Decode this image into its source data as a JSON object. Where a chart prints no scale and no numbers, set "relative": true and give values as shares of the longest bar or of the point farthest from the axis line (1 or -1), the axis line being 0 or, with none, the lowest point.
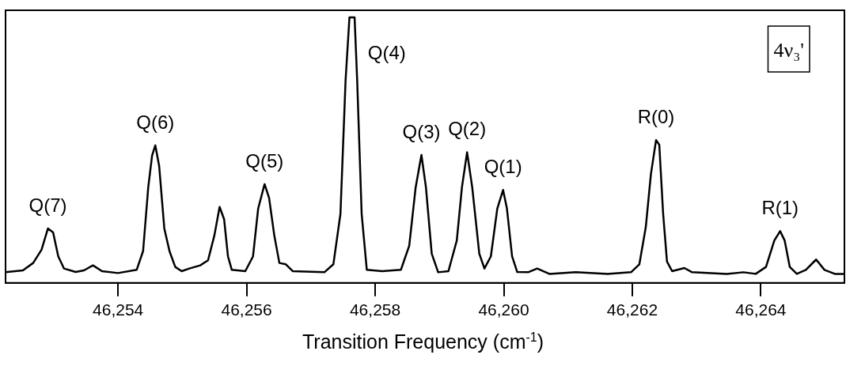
{
  "chart_data": {
    "type": "line",
    "relative": true,
    "xlabel": "Transition Frequency (cm$^{-1}$)",
    "marker": "none",
    "line_style": "solid",
    "xlim": [
      46252.25,
      46265.3
    ],
    "xticks": [
      {
        "value": 46254,
        "label": "46,254"
      },
      {
        "value": 46256,
        "label": "46,256"
      },
      {
        "value": 46258,
        "label": "46,258"
      },
      {
        "value": 46260,
        "label": "46,260"
      },
      {
        "value": 46262,
        "label": "46,262"
      },
      {
        "value": 46264,
        "label": "46,264"
      }
    ],
    "series": [
      {
        "color": "#000000",
        "x": [
          46252.25,
          46252.52,
          46252.68,
          46252.81,
          46252.91,
          46252.99,
          46253.07,
          46253.16,
          46253.34,
          46253.47,
          46253.61,
          46253.75,
          46254.0,
          46254.29,
          46254.39,
          46254.47,
          46254.53,
          46254.58,
          46254.64,
          46254.72,
          46254.8,
          46254.89,
          46254.99,
          46255.11,
          46255.28,
          46255.4,
          46255.5,
          46255.58,
          46255.65,
          46255.71,
          46255.77,
          46255.98,
          46256.1,
          46256.18,
          46256.28,
          46256.35,
          46256.43,
          46256.51,
          46256.61,
          46256.72,
          46257.21,
          46257.35,
          46257.46,
          46257.54,
          46257.6,
          46257.68,
          46257.72,
          46257.79,
          46257.87,
          46258.11,
          46258.4,
          46258.53,
          46258.63,
          46258.72,
          46258.79,
          46258.88,
          46258.98,
          46259.14,
          46259.27,
          46259.35,
          46259.43,
          46259.51,
          46259.62,
          46259.7,
          46259.8,
          46259.9,
          46259.99,
          46260.05,
          46260.13,
          46260.21,
          46260.38,
          46260.52,
          46260.71,
          46261.12,
          46261.61,
          46261.98,
          46262.11,
          46262.21,
          46262.29,
          46262.37,
          46262.42,
          46262.48,
          46262.54,
          46262.62,
          46262.81,
          46262.93,
          46263.47,
          46263.73,
          46263.92,
          46264.08,
          46264.21,
          46264.3,
          46264.37,
          46264.45,
          46264.56,
          46264.7,
          46264.86,
          46264.99,
          46265.15,
          46265.3
        ],
        "values": [
          0.04,
          0.047,
          0.075,
          0.125,
          0.205,
          0.19,
          0.1,
          0.054,
          0.041,
          0.047,
          0.066,
          0.044,
          0.037,
          0.049,
          0.12,
          0.36,
          0.48,
          0.518,
          0.44,
          0.205,
          0.12,
          0.06,
          0.044,
          0.054,
          0.066,
          0.085,
          0.18,
          0.286,
          0.24,
          0.1,
          0.049,
          0.044,
          0.1,
          0.28,
          0.372,
          0.32,
          0.18,
          0.075,
          0.07,
          0.044,
          0.04,
          0.07,
          0.26,
          0.764,
          1.0,
          1.0,
          0.764,
          0.26,
          0.049,
          0.044,
          0.049,
          0.14,
          0.36,
          0.482,
          0.36,
          0.11,
          0.04,
          0.044,
          0.16,
          0.36,
          0.492,
          0.36,
          0.11,
          0.054,
          0.1,
          0.28,
          0.35,
          0.28,
          0.1,
          0.041,
          0.04,
          0.054,
          0.034,
          0.04,
          0.034,
          0.04,
          0.07,
          0.21,
          0.41,
          0.538,
          0.52,
          0.26,
          0.08,
          0.044,
          0.056,
          0.04,
          0.034,
          0.04,
          0.034,
          0.06,
          0.16,
          0.195,
          0.16,
          0.06,
          0.034,
          0.049,
          0.088,
          0.049,
          0.034,
          0.034
        ]
      }
    ],
    "annotations": [
      {
        "text": "Q(7)",
        "x": 46252.91,
        "y": 0.205
      },
      {
        "text": "Q(6)",
        "x": 46254.58,
        "y": 0.518
      },
      {
        "text": "Q(5)",
        "x": 46256.28,
        "y": 0.372
      },
      {
        "text": "Q(4)",
        "x": 46257.64,
        "y": 1.0
      },
      {
        "text": "Q(3)",
        "x": 46258.72,
        "y": 0.482
      },
      {
        "text": "Q(2)",
        "x": 46259.43,
        "y": 0.492
      },
      {
        "text": "Q(1)",
        "x": 46259.99,
        "y": 0.35
      },
      {
        "text": "R(0)",
        "x": 46262.37,
        "y": 0.538
      },
      {
        "text": "R(1)",
        "x": 46264.3,
        "y": 0.195
      },
      "4ν₃'"
    ]
  }
}
